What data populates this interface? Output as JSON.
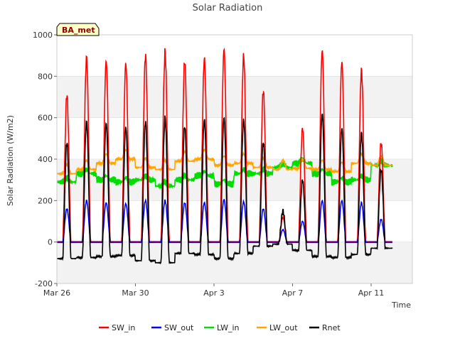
{
  "chart_data": {
    "type": "line",
    "title": "Solar Radiation",
    "xlabel": "Time",
    "ylabel": "Solar Radiation (W/m2)",
    "badge": "BA_met",
    "x_unit": "day",
    "xlim": [
      0,
      18.1
    ],
    "ylim": [
      -200,
      1000
    ],
    "yticks": [
      -200,
      0,
      200,
      400,
      600,
      800,
      1000
    ],
    "xticks": [
      {
        "value": 0,
        "label": "Mar 26"
      },
      {
        "value": 4,
        "label": "Mar 30"
      },
      {
        "value": 8,
        "label": "Apr 3"
      },
      {
        "value": 12,
        "label": "Apr 7"
      },
      {
        "value": 16,
        "label": "Apr 11"
      }
    ],
    "grid": "horizontal bands",
    "legend_position": "bottom-center",
    "series": [
      {
        "name": "SW_in",
        "color": "#ff0000",
        "values": [
          710,
          890,
          875,
          862,
          900,
          915,
          875,
          885,
          930,
          900,
          730,
          120,
          550,
          925,
          870,
          830,
          480
        ],
        "note": "daily peak values"
      },
      {
        "name": "SW_out",
        "color": "#0000ff",
        "values": [
          160,
          200,
          190,
          185,
          200,
          200,
          190,
          190,
          205,
          195,
          160,
          60,
          100,
          200,
          200,
          190,
          110
        ]
      },
      {
        "name": "LW_in",
        "color": "#00dd00",
        "values": [
          290,
          330,
          300,
          290,
          300,
          270,
          300,
          320,
          280,
          330,
          330,
          360,
          380,
          330,
          290,
          300,
          370
        ]
      },
      {
        "name": "LW_out",
        "color": "#ffa500",
        "values": [
          350,
          370,
          400,
          420,
          380,
          370,
          410,
          420,
          390,
          400,
          380,
          370,
          375,
          370,
          360,
          400,
          390
        ]
      },
      {
        "name": "Rnet",
        "color": "#000000",
        "values": [
          480,
          580,
          575,
          555,
          580,
          600,
          560,
          590,
          600,
          590,
          480,
          150,
          300,
          620,
          550,
          525,
          350
        ],
        "night_values": [
          -80,
          -75,
          -70,
          -65,
          -90,
          -100,
          -55,
          -60,
          -80,
          -55,
          -20,
          -10,
          -40,
          -70,
          -75,
          -60,
          -30
        ]
      }
    ]
  }
}
